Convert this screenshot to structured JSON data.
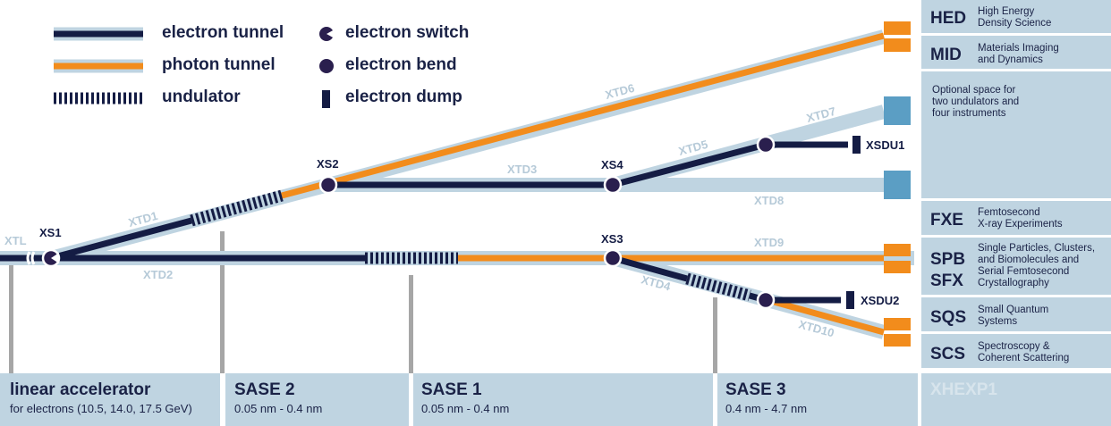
{
  "legend": {
    "electron_tunnel": "electron tunnel",
    "photon_tunnel": "photon tunnel",
    "undulator": "undulator",
    "electron_switch": "electron switch",
    "electron_bend": "electron bend",
    "electron_dump": "electron dump"
  },
  "tunnels": {
    "xtl": "XTL",
    "xtd1": "XTD1",
    "xtd2": "XTD2",
    "xtd3": "XTD3",
    "xtd4": "XTD4",
    "xtd5": "XTD5",
    "xtd6": "XTD6",
    "xtd7": "XTD7",
    "xtd8": "XTD8",
    "xtd9": "XTD9",
    "xtd10": "XTD10"
  },
  "switches": {
    "xs1": "XS1",
    "xs2": "XS2",
    "xs3": "XS3",
    "xs4": "XS4"
  },
  "dumps": {
    "xsdu1": "XSDU1",
    "xsdu2": "XSDU2"
  },
  "instruments": [
    {
      "code": "HED",
      "desc": [
        "High Energy",
        "Density Science"
      ]
    },
    {
      "code": "MID",
      "desc": [
        "Materials Imaging",
        "and Dynamics"
      ]
    },
    {
      "code": "",
      "desc": [
        "Optional space for",
        "two undulators and",
        "four instruments"
      ]
    },
    {
      "code": "FXE",
      "desc": [
        "Femtosecond",
        "X-ray Experiments"
      ]
    },
    {
      "code": "SPB\nSFX",
      "desc": [
        "Single Particles, Clusters,",
        "and Biomolecules and",
        "Serial Femtosecond",
        "Crystallography"
      ]
    },
    {
      "code": "SQS",
      "desc": [
        "Small Quantum",
        "Systems"
      ]
    },
    {
      "code": "SCS",
      "desc": [
        "Spectroscopy &",
        "Coherent Scattering"
      ]
    }
  ],
  "sections": [
    {
      "title": "linear accelerator",
      "subtitle": "for electrons (10.5, 14.0, 17.5 GeV)"
    },
    {
      "title": "SASE 2",
      "subtitle": "0.05 nm - 0.4 nm"
    },
    {
      "title": "SASE 1",
      "subtitle": "0.05 nm - 0.4 nm"
    },
    {
      "title": "SASE 3",
      "subtitle": "0.4 nm - 4.7 nm"
    }
  ],
  "hall": "XHEXP1",
  "colors": {
    "electron": "#141c44",
    "photon": "#f28c1c",
    "tunnel": "#bfd4e1",
    "tunnel_label": "#b6cad8",
    "instrument_box": "#5b9ec4",
    "post": "#a6a6a6"
  }
}
